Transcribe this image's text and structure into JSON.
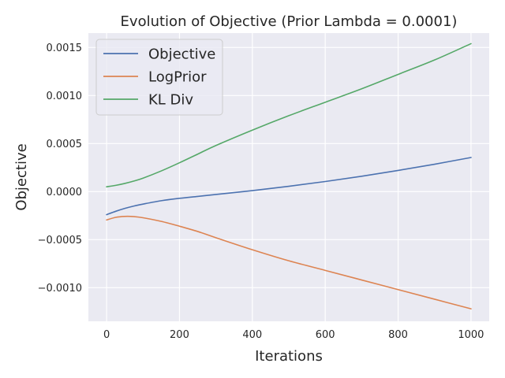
{
  "chart_data": {
    "type": "line",
    "title": "Evolution of Objective (Prior Lambda = 0.0001)",
    "xlabel": "Iterations",
    "ylabel": "Objective",
    "xlim": [
      -50,
      1050
    ],
    "ylim": [
      -0.00135,
      0.00165
    ],
    "xticks": [
      0,
      200,
      400,
      600,
      800,
      1000
    ],
    "yticks": [
      -0.001,
      -0.0005,
      0.0,
      0.0005,
      0.001,
      0.0015
    ],
    "ytick_labels": [
      "−0.0010",
      "−0.0005",
      "0.0000",
      "0.0005",
      "0.0010",
      "0.0015"
    ],
    "grid": true,
    "legend_position": "upper-left",
    "series": [
      {
        "name": "Objective",
        "color": "#4c72b0",
        "x": [
          0,
          25,
          50,
          75,
          100,
          150,
          200,
          250,
          300,
          400,
          500,
          600,
          700,
          800,
          900,
          1000
        ],
        "y": [
          -0.00024,
          -0.000205,
          -0.000175,
          -0.00015,
          -0.00013,
          -9.5e-05,
          -7e-05,
          -5e-05,
          -3e-05,
          1e-05,
          5.5e-05,
          0.000105,
          0.00016,
          0.00022,
          0.000285,
          0.000355
        ]
      },
      {
        "name": "LogPrior",
        "color": "#dd8452",
        "x": [
          0,
          25,
          50,
          75,
          100,
          150,
          200,
          250,
          300,
          400,
          500,
          600,
          700,
          800,
          900,
          1000
        ],
        "y": [
          -0.000295,
          -0.000268,
          -0.000258,
          -0.00026,
          -0.000272,
          -0.00031,
          -0.00036,
          -0.000415,
          -0.00048,
          -0.000605,
          -0.00072,
          -0.00082,
          -0.00092,
          -0.00102,
          -0.00112,
          -0.00122
        ]
      },
      {
        "name": "KL Div",
        "color": "#55a868",
        "x": [
          0,
          25,
          50,
          75,
          100,
          150,
          200,
          250,
          300,
          400,
          500,
          600,
          700,
          800,
          900,
          1000
        ],
        "y": [
          5e-05,
          6.5e-05,
          8.5e-05,
          0.00011,
          0.00014,
          0.000215,
          0.0003,
          0.00039,
          0.00048,
          0.00064,
          0.00079,
          0.00093,
          0.00107,
          0.00122,
          0.00137,
          0.00154
        ]
      }
    ]
  }
}
